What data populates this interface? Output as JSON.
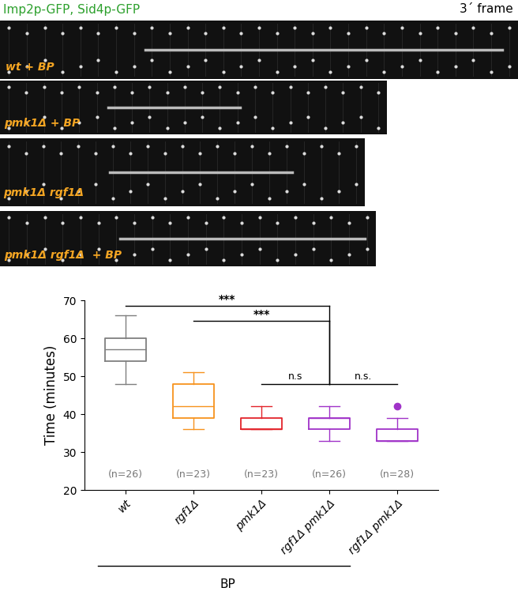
{
  "header": {
    "left": "Imp2p-GFP, Sid4p-GFP",
    "left_color": "#2ca02c",
    "right": "3´ frame"
  },
  "kymographs": [
    {
      "label": "wt + BP"
    },
    {
      "label": "pmk1Δ + BP"
    },
    {
      "label": "pmk1Δ rgf1Δ"
    },
    {
      "label": "pmk1Δ rgf1Δ  + BP"
    }
  ],
  "kymograph_label_color": "#f5a623",
  "chart_data": {
    "type": "box",
    "ylabel": "Time (minutes)",
    "categories": [
      "wt",
      "rgf1Δ",
      "pmk1Δ",
      "rgf1Δ pmk1Δ",
      "rgf1Δ pmk1Δ"
    ],
    "boxes": [
      {
        "min": 48,
        "q1": 54,
        "median": 57,
        "q3": 60,
        "max": 66,
        "outliers": []
      },
      {
        "min": 36,
        "q1": 39,
        "median": 42,
        "q3": 48,
        "max": 51,
        "outliers": []
      },
      {
        "min": 36,
        "q1": 36,
        "median": 36,
        "q3": 39,
        "max": 42,
        "outliers": []
      },
      {
        "min": 33,
        "q1": 36,
        "median": 39,
        "q3": 39,
        "max": 42,
        "outliers": []
      },
      {
        "min": 33,
        "q1": 33,
        "median": 33,
        "q3": 36,
        "max": 39,
        "outliers": [
          42
        ]
      }
    ],
    "colors": [
      "#7f7f7f",
      "#f7931e",
      "#e3242b",
      "#a033c8",
      "#a033c8"
    ],
    "n_labels": [
      "(n=26)",
      "(n=23)",
      "(n=23)",
      "(n=26)",
      "(n=28)"
    ],
    "comparisons": [
      {
        "from": 0,
        "to": 3,
        "label": "***"
      },
      {
        "from": 1,
        "to": 3,
        "label": "***"
      },
      {
        "from": 2,
        "to": 3,
        "label": "n.s"
      },
      {
        "from": 3,
        "to": 4,
        "label": "n.s."
      }
    ],
    "group_label": {
      "text": "BP",
      "from": 0,
      "to": 3
    },
    "ylim": [
      20,
      70
    ],
    "yticks": [
      20,
      30,
      40,
      50,
      60,
      70
    ],
    "grid": false
  }
}
